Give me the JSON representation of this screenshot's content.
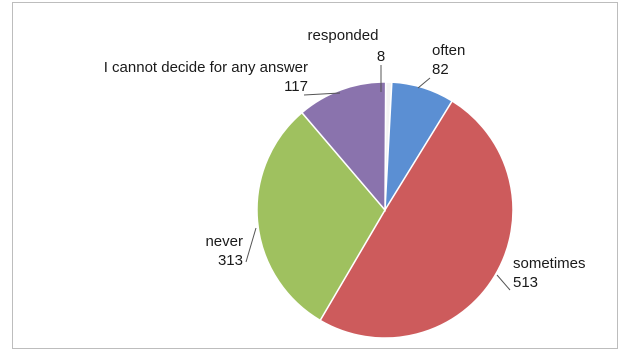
{
  "chart_data": {
    "type": "pie",
    "slices": [
      {
        "label": "responded",
        "value": 8,
        "color": "#f3f3f3"
      },
      {
        "label": "often",
        "value": 82,
        "color": "#5b8fd3"
      },
      {
        "label": "sometimes",
        "value": 513,
        "color": "#cd5b5c"
      },
      {
        "label": "never",
        "value": 313,
        "color": "#9fc15f"
      },
      {
        "label": "I cannot decide for any answer",
        "value": 117,
        "color": "#8a73ad"
      }
    ]
  }
}
